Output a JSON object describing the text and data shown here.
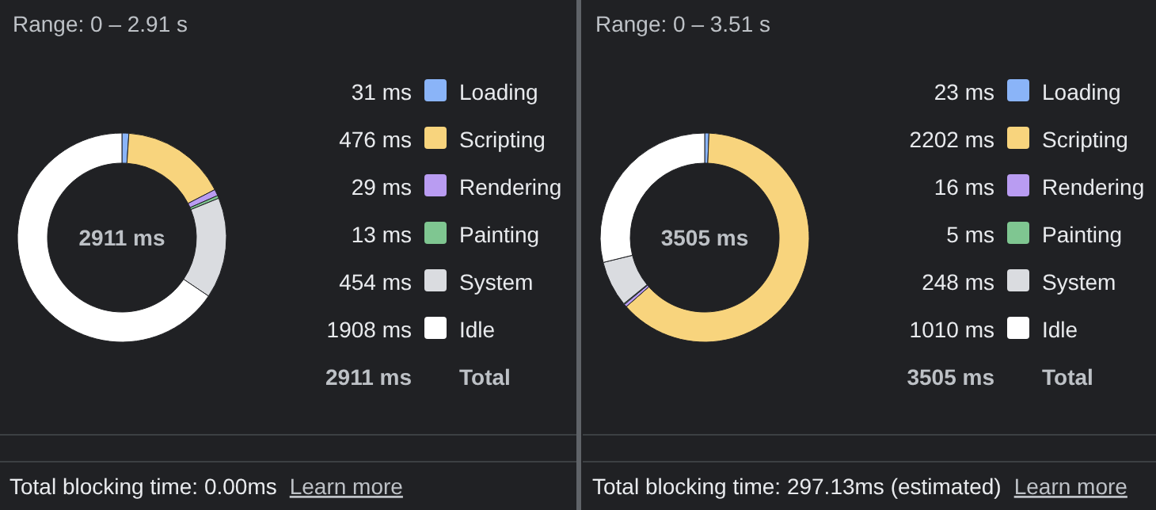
{
  "chart_data": [
    {
      "type": "donut",
      "title": "Range: 0 – 2.91 s",
      "categories": [
        "Loading",
        "Scripting",
        "Rendering",
        "Painting",
        "System",
        "Idle"
      ],
      "values": [
        31,
        476,
        29,
        13,
        454,
        1908
      ],
      "colors": [
        "#8ab4f8",
        "#f8d47d",
        "#b99cf2",
        "#7fc691",
        "#dadce0",
        "#ffffff"
      ],
      "value_labels": [
        "31 ms",
        "476 ms",
        "29 ms",
        "13 ms",
        "454 ms",
        "1908 ms"
      ],
      "totals": [
        "2911 ms"
      ],
      "legend": "right",
      "annotations": [
        "Total",
        "Total blocking time: 0.00ms",
        "Learn more"
      ]
    },
    {
      "type": "donut",
      "title": "Range: 0 – 3.51 s",
      "categories": [
        "Loading",
        "Scripting",
        "Rendering",
        "Painting",
        "System",
        "Idle"
      ],
      "values": [
        23,
        2202,
        16,
        5,
        248,
        1010
      ],
      "colors": [
        "#8ab4f8",
        "#f8d47d",
        "#b99cf2",
        "#7fc691",
        "#dadce0",
        "#ffffff"
      ],
      "value_labels": [
        "23 ms",
        "2202 ms",
        "16 ms",
        "5 ms",
        "248 ms",
        "1010 ms"
      ],
      "totals": [
        "3505 ms"
      ],
      "legend": "right",
      "annotations": [
        "Total",
        "Total blocking time: 297.13ms (estimated)",
        "Learn more"
      ]
    }
  ]
}
